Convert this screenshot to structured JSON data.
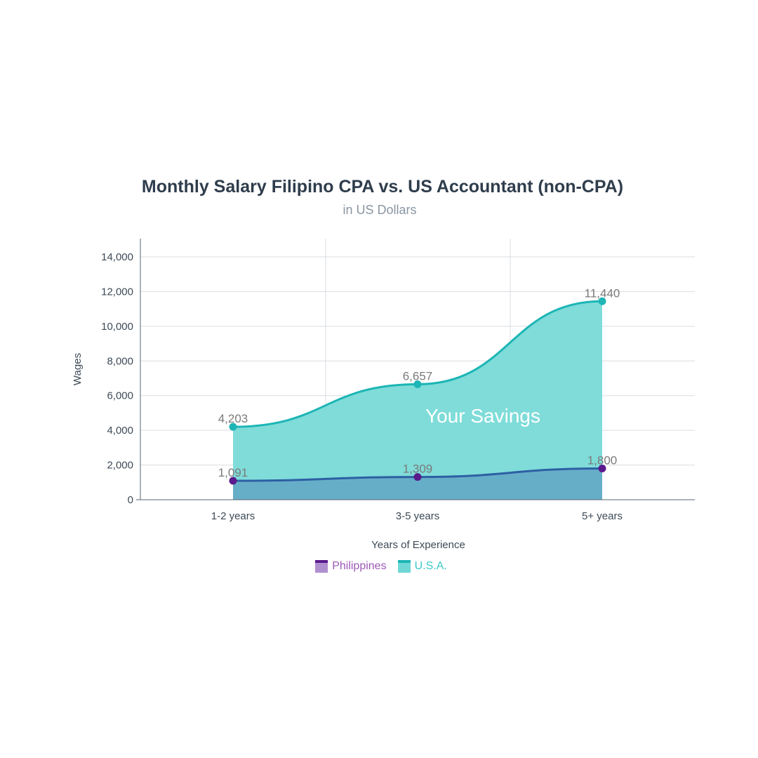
{
  "chart_data": {
    "type": "area",
    "title": "Monthly Salary Filipino CPA vs. US Accountant (non-CPA)",
    "subtitle": "in US Dollars",
    "xlabel": "Years of Experience",
    "ylabel": "Wages",
    "categories": [
      "1-2 years",
      "3-5 years",
      "5+ years"
    ],
    "ylim": [
      0,
      14000
    ],
    "yticks": [
      0,
      2000,
      4000,
      6000,
      8000,
      10000,
      12000,
      14000
    ],
    "ytick_labels": [
      "0",
      "2,000",
      "4,000",
      "6,000",
      "8,000",
      "10,000",
      "12,000",
      "14,000"
    ],
    "grid": true,
    "legend_position": "bottom-center",
    "series": [
      {
        "name": "Philippines",
        "values": [
          1091,
          1309,
          1800
        ],
        "labels": [
          "1,091",
          "1,309",
          "1,800"
        ],
        "line_color": "#2e5fa3",
        "fill_color": "#5d9fc2",
        "marker_color": "#5a1a8c",
        "legend_fill": "#b08fcf",
        "legend_top": "#5a1a8c",
        "legend_text_color": "#9b59b6"
      },
      {
        "name": "U.S.A.",
        "values": [
          4203,
          6657,
          11440
        ],
        "labels": [
          "4,203",
          "6,657",
          "11,440"
        ],
        "line_color": "#1db5b5",
        "fill_color": "#7fdcd9",
        "marker_color": "#1db5b5",
        "legend_fill": "#6fd8d6",
        "legend_top": "#1db5b5",
        "legend_text_color": "#3cc7c7"
      }
    ],
    "annotations": [
      {
        "text": "Your Savings"
      }
    ]
  }
}
